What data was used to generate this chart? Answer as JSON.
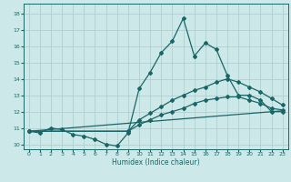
{
  "xlabel": "Humidex (Indice chaleur)",
  "xlim": [
    -0.5,
    23.5
  ],
  "ylim": [
    9.7,
    18.6
  ],
  "yticks": [
    10,
    11,
    12,
    13,
    14,
    15,
    16,
    17,
    18
  ],
  "xticks": [
    0,
    1,
    2,
    3,
    4,
    5,
    6,
    7,
    8,
    9,
    10,
    11,
    12,
    13,
    14,
    15,
    16,
    17,
    18,
    19,
    20,
    21,
    22,
    23
  ],
  "bg_color": "#cce8e8",
  "grid_color": "#aacccc",
  "line_color": "#1a6666",
  "lines": [
    {
      "x": [
        0,
        1,
        2,
        3,
        4,
        5,
        6,
        7,
        8,
        9,
        10,
        11,
        12,
        13,
        14,
        15,
        16,
        17,
        18,
        19,
        20,
        21,
        22,
        23
      ],
      "y": [
        10.8,
        10.7,
        11.0,
        10.9,
        10.6,
        10.5,
        10.3,
        10.0,
        9.9,
        10.7,
        13.4,
        14.4,
        15.6,
        16.3,
        17.7,
        15.4,
        16.2,
        15.8,
        14.2,
        13.0,
        13.0,
        12.7,
        12.0,
        12.0
      ],
      "marker": "D",
      "markersize": 2.0,
      "linewidth": 0.9,
      "linestyle": "-"
    },
    {
      "x": [
        0,
        9,
        10,
        11,
        12,
        13,
        14,
        15,
        16,
        17,
        18,
        19,
        20,
        21,
        22,
        23
      ],
      "y": [
        10.8,
        10.8,
        11.5,
        11.9,
        12.3,
        12.7,
        13.0,
        13.3,
        13.5,
        13.8,
        14.0,
        13.8,
        13.5,
        13.2,
        12.8,
        12.4
      ],
      "marker": "D",
      "markersize": 2.0,
      "linewidth": 0.9,
      "linestyle": "-"
    },
    {
      "x": [
        0,
        9,
        10,
        11,
        12,
        13,
        14,
        15,
        16,
        17,
        18,
        19,
        20,
        21,
        22,
        23
      ],
      "y": [
        10.8,
        10.8,
        11.2,
        11.5,
        11.8,
        12.0,
        12.2,
        12.5,
        12.7,
        12.8,
        12.9,
        12.9,
        12.7,
        12.5,
        12.2,
        12.1
      ],
      "marker": "D",
      "markersize": 2.0,
      "linewidth": 0.9,
      "linestyle": "-"
    },
    {
      "x": [
        0,
        23
      ],
      "y": [
        10.8,
        12.05
      ],
      "marker": null,
      "markersize": 0,
      "linewidth": 0.9,
      "linestyle": "-"
    }
  ]
}
